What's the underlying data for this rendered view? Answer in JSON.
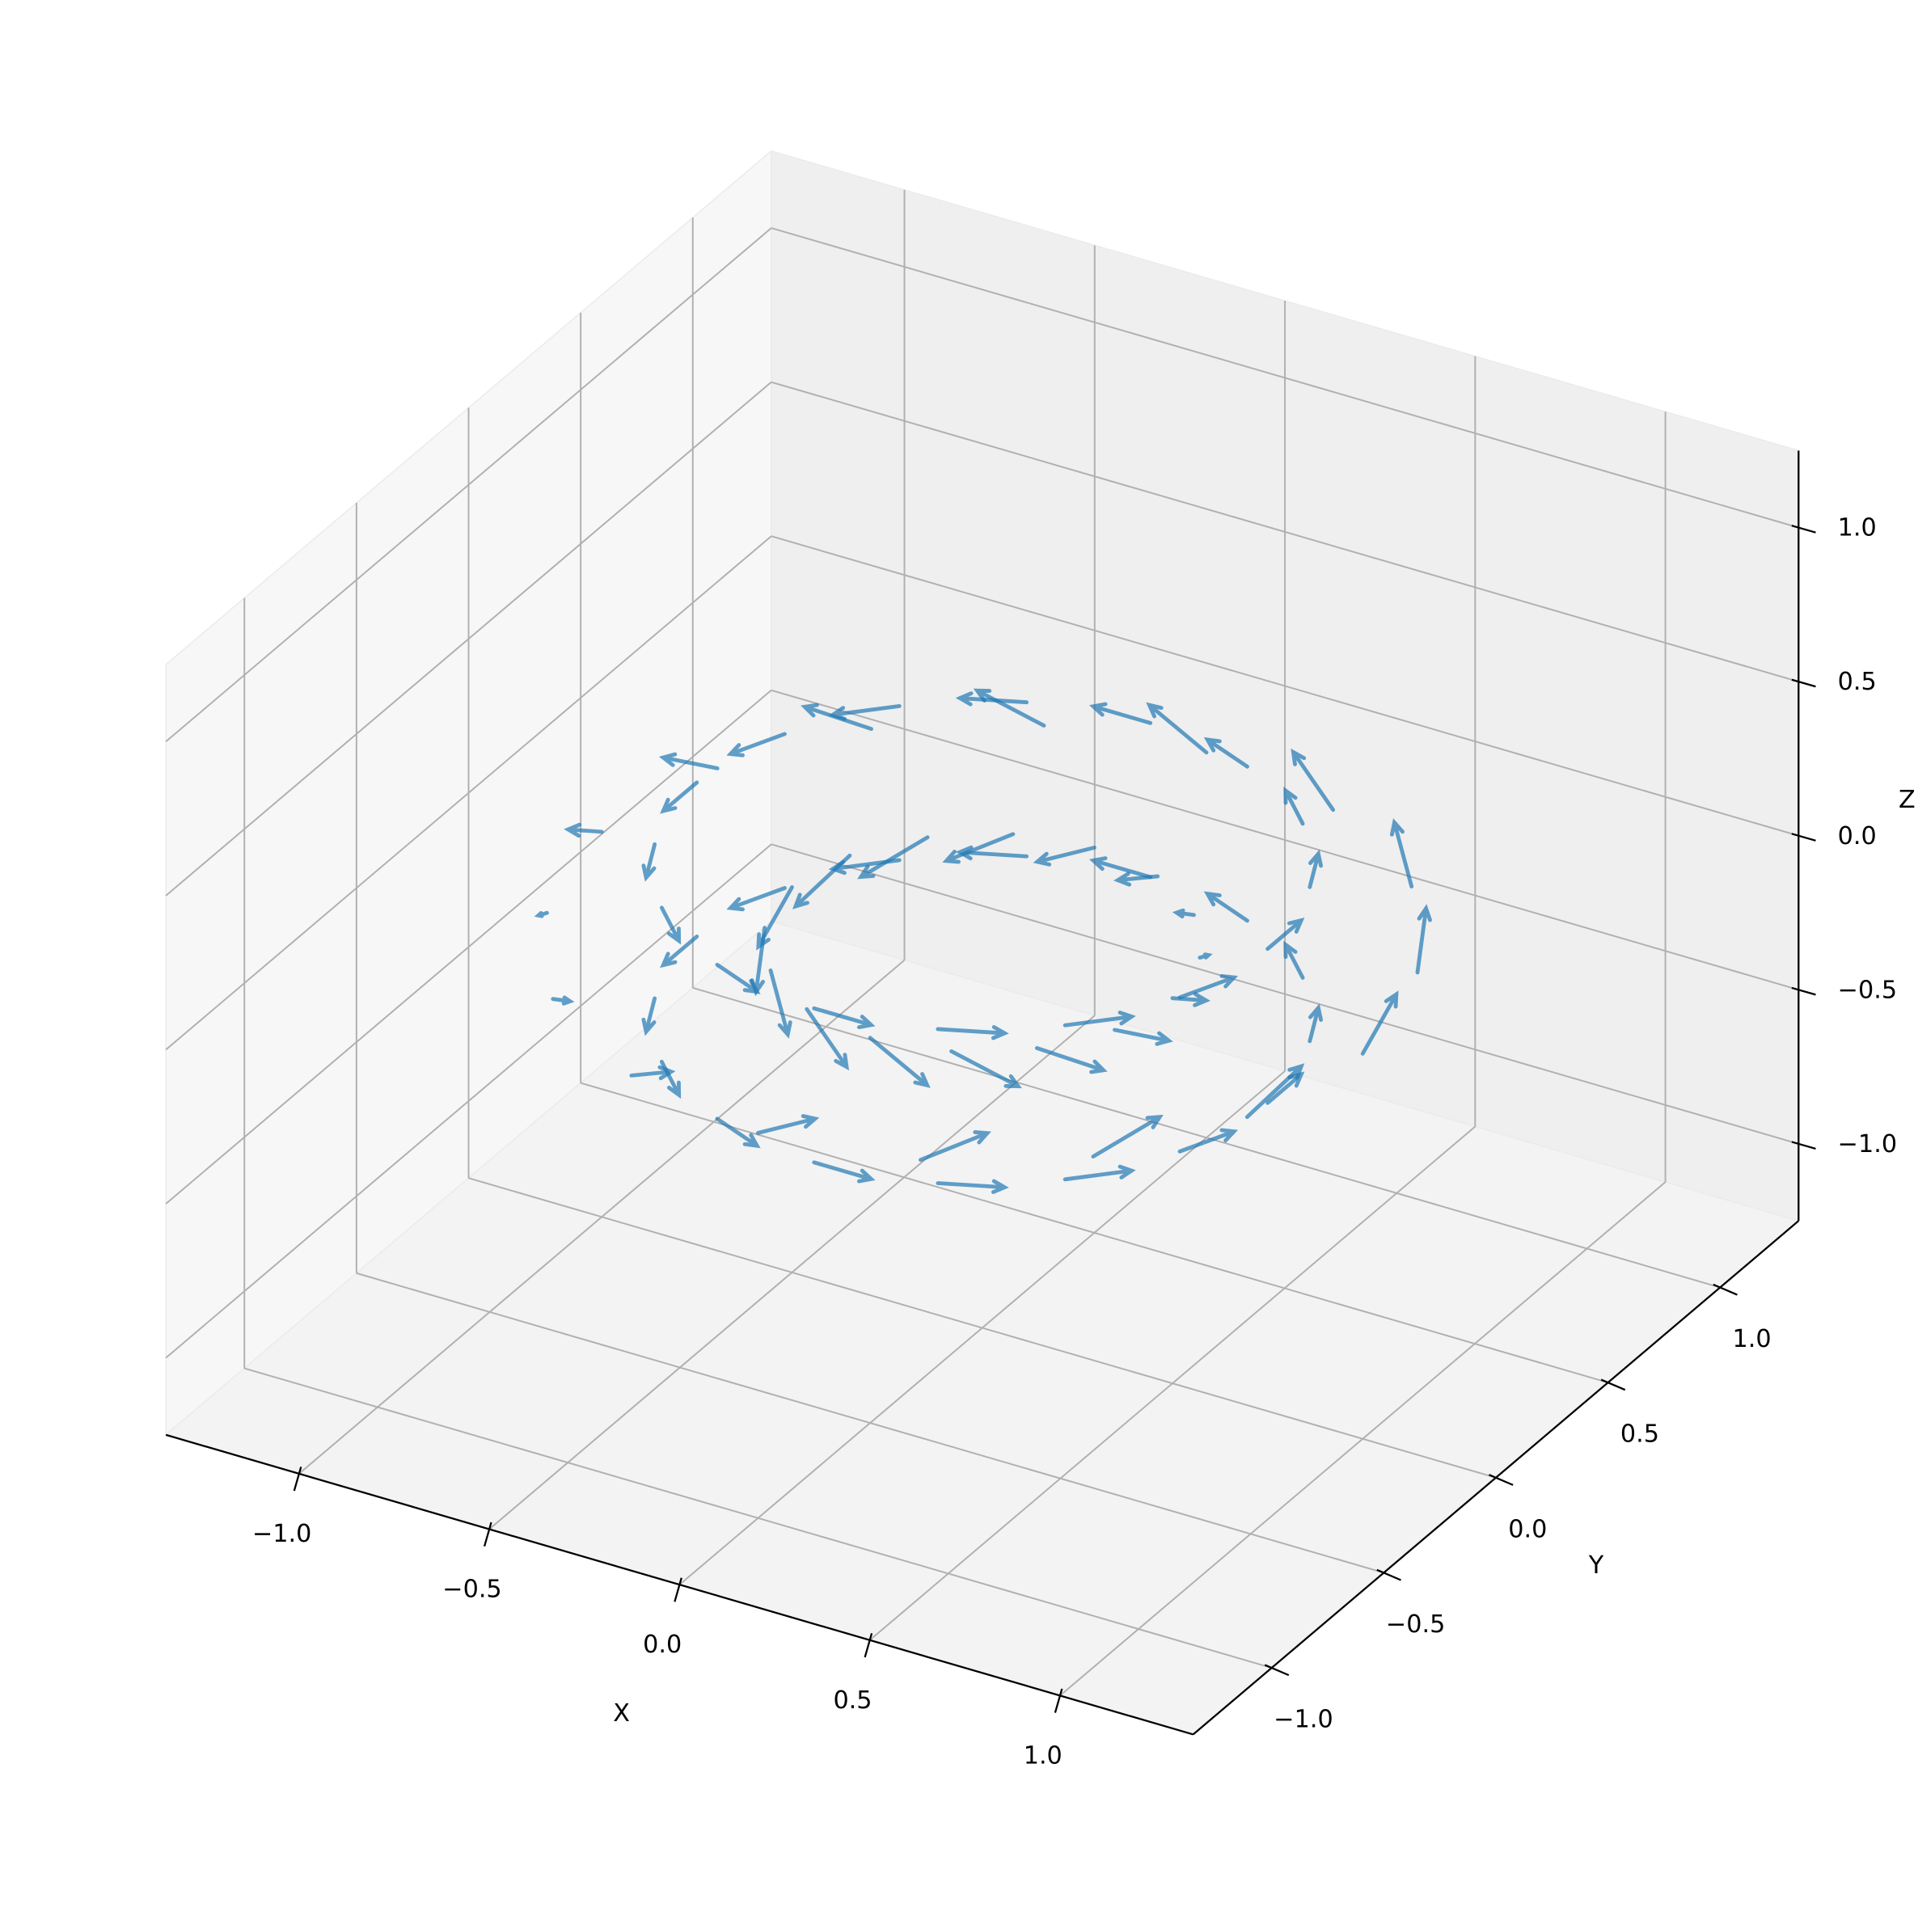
{
  "chart_data": {
    "type": "quiver3d",
    "xlabel": "X",
    "ylabel": "Y",
    "zlabel": "Z",
    "color": "#1f77b4",
    "grid": true,
    "xlim": [
      -1.35,
      1.35
    ],
    "ylim": [
      -1.35,
      1.35
    ],
    "zlim": [
      -1.25,
      1.25
    ],
    "xticks": [
      {
        "value": -1,
        "label": "−1.0"
      },
      {
        "value": -0.5,
        "label": "−0.5"
      },
      {
        "value": 0,
        "label": "0.0"
      },
      0.5,
      {
        "value": 1,
        "label": "1.0"
      }
    ],
    "yticks": [
      {
        "value": -1,
        "label": "−1.0"
      },
      {
        "value": -0.5,
        "label": "−0.5"
      },
      {
        "value": 0,
        "label": "0.0"
      },
      0.5,
      {
        "value": 1,
        "label": "1.0"
      }
    ],
    "zticks": [
      {
        "value": -1,
        "label": "−1.0"
      },
      {
        "value": -0.5,
        "label": "−0.5"
      },
      {
        "value": 0,
        "label": "0.0"
      },
      0.5,
      {
        "value": 1,
        "label": "1.0"
      }
    ],
    "x": [
      0.75,
      0.69,
      0.53,
      0.29,
      0,
      -0.29,
      -0.53,
      -0.69,
      -0.75,
      -0.69,
      -0.53,
      -0.29,
      0,
      0.29,
      0.53,
      0.69,
      1,
      0.92,
      0.71,
      0.38,
      0,
      -0.38,
      -0.71,
      -0.92,
      -1,
      -0.92,
      -0.71,
      -0.38,
      0,
      0.38,
      0.71,
      0.92,
      0.75,
      0.69,
      0.53,
      0.29,
      0,
      -0.29,
      -0.53,
      -0.69,
      -0.75,
      -0.69,
      -0.53,
      -0.29,
      0,
      0.29,
      0.53,
      0.69,
      0.5,
      0.46,
      0.35,
      0.19,
      0,
      -0.19,
      -0.35,
      -0.46,
      -0.5,
      -0.46,
      -0.35,
      -0.19,
      0,
      0.19,
      0.35,
      0.46
    ],
    "y": [
      0,
      0.29,
      0.53,
      0.69,
      0.75,
      0.69,
      0.53,
      0.29,
      0,
      -0.29,
      -0.53,
      -0.69,
      -0.75,
      -0.69,
      -0.53,
      -0.29,
      0,
      0.38,
      0.71,
      0.92,
      1,
      0.92,
      0.71,
      0.38,
      0,
      -0.38,
      -0.71,
      -0.92,
      -1,
      -0.92,
      -0.71,
      -0.38,
      0,
      0.29,
      0.53,
      0.69,
      0.75,
      0.69,
      0.53,
      0.29,
      0,
      -0.29,
      -0.53,
      -0.69,
      -0.75,
      -0.69,
      -0.53,
      -0.29,
      0,
      0.19,
      0.35,
      0.46,
      0.5,
      0.46,
      0.35,
      0.19,
      0,
      -0.19,
      -0.35,
      -0.46,
      -0.5,
      -0.46,
      -0.35,
      -0.19
    ],
    "z": [
      0.25,
      0.25,
      0.25,
      0.25,
      0.25,
      0.25,
      0.25,
      0.25,
      0.25,
      0.25,
      0.25,
      0.25,
      0.25,
      0.25,
      0.25,
      0.25,
      0,
      0,
      0,
      0,
      0,
      0,
      0,
      0,
      0,
      0,
      0,
      0,
      0,
      0,
      0,
      0,
      -0.25,
      -0.25,
      -0.25,
      -0.25,
      -0.25,
      -0.25,
      -0.25,
      -0.25,
      -0.25,
      -0.25,
      -0.25,
      -0.25,
      -0.25,
      -0.25,
      -0.25,
      -0.25,
      0,
      0,
      0,
      0,
      0,
      0,
      0,
      0,
      0,
      0,
      0,
      0,
      0,
      0,
      0,
      0
    ],
    "u": [
      0,
      -0.06,
      -0.11,
      -0.14,
      -0.15,
      -0.14,
      -0.11,
      -0.06,
      0,
      0.06,
      0.11,
      0.14,
      0.15,
      0.14,
      0.11,
      0.06,
      0,
      -0.06,
      -0.11,
      -0.14,
      -0.15,
      -0.14,
      -0.11,
      -0.06,
      0,
      0.06,
      0.11,
      0.14,
      0.15,
      0.14,
      0.11,
      0.06,
      0,
      -0.06,
      -0.11,
      -0.14,
      -0.15,
      -0.14,
      -0.11,
      -0.06,
      0,
      0.06,
      0.11,
      0.14,
      0.15,
      0.14,
      0.11,
      0.06,
      0,
      -0.06,
      -0.11,
      -0.14,
      -0.15,
      -0.14,
      -0.11,
      -0.06,
      0,
      0.06,
      0.11,
      0.14,
      0.15,
      0.14,
      0.11,
      0.06
    ],
    "v": [
      0.15,
      0.14,
      0.11,
      0.06,
      0,
      -0.06,
      -0.11,
      -0.14,
      -0.15,
      -0.14,
      -0.11,
      -0.06,
      0,
      0.06,
      0.11,
      0.14,
      0.15,
      0.14,
      0.11,
      0.06,
      0,
      -0.06,
      -0.11,
      -0.14,
      -0.15,
      -0.14,
      -0.11,
      -0.06,
      0,
      0.06,
      0.11,
      0.14,
      0.15,
      0.14,
      0.11,
      0.06,
      0,
      -0.06,
      -0.11,
      -0.14,
      -0.15,
      -0.14,
      -0.11,
      -0.06,
      0,
      0.06,
      0.11,
      0.14,
      0.15,
      0.14,
      0.11,
      0.06,
      0,
      -0.06,
      -0.11,
      -0.14,
      -0.15,
      -0.14,
      -0.11,
      -0.06,
      0,
      0.06,
      0.11,
      0.14
    ],
    "w": [
      0,
      0,
      0,
      0,
      0,
      0,
      0,
      0,
      0,
      0,
      0,
      0,
      0,
      0,
      0,
      0,
      0.1,
      0.1,
      0.1,
      0.1,
      0.1,
      0.1,
      0.1,
      0.1,
      0.1,
      0.1,
      0.1,
      0.1,
      0.1,
      0.1,
      0.1,
      0.1,
      0,
      0,
      0,
      0,
      0,
      0,
      0,
      0,
      0,
      0,
      0,
      0,
      0,
      0,
      0,
      0,
      -0.1,
      -0.1,
      -0.1,
      -0.1,
      -0.1,
      -0.1,
      -0.1,
      -0.1,
      -0.1,
      -0.1,
      -0.1,
      -0.1,
      -0.1,
      -0.1,
      -0.1,
      -0.1
    ]
  }
}
